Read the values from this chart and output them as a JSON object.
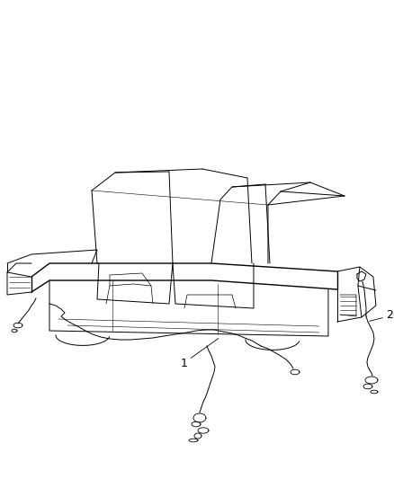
{
  "background_color": "#ffffff",
  "line_color": "#000000",
  "label_1": "1",
  "label_2": "2",
  "fig_width": 4.38,
  "fig_height": 5.33,
  "dpi": 100
}
